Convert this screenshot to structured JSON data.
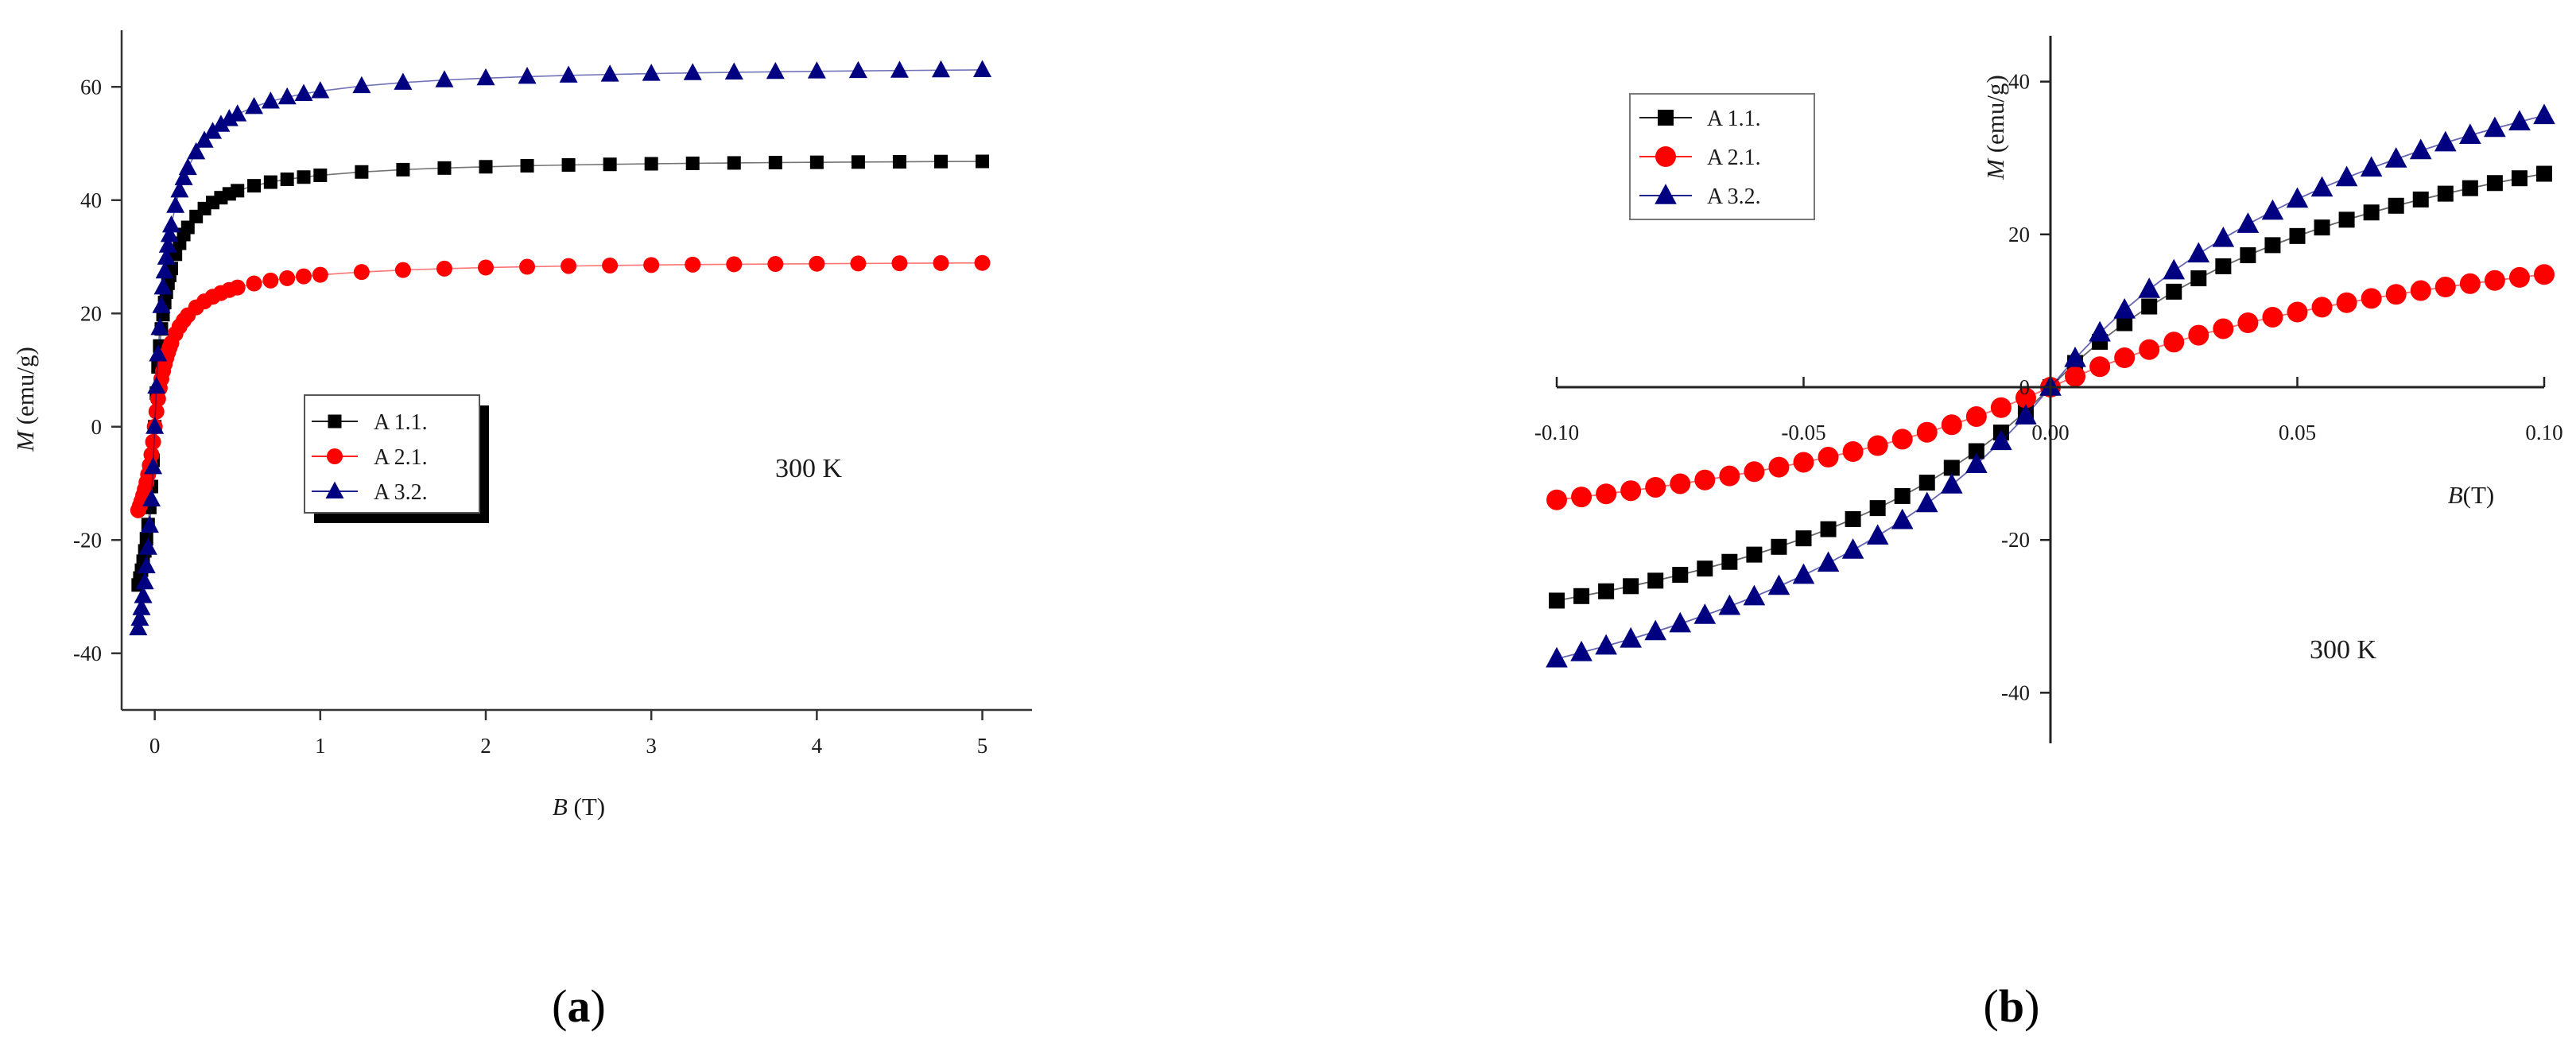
{
  "chart_data": [
    {
      "type": "line",
      "panel_label": "a",
      "xlabel_var": "B",
      "xlabel_unit": " (T)",
      "ylabel_var": "M",
      "ylabel_unit": " (emu/g)",
      "xlim": [
        -0.2,
        5.3
      ],
      "ylim": [
        -50,
        70
      ],
      "xticks": [
        0,
        1,
        2,
        3,
        4,
        5
      ],
      "xtick_labels": [
        "0",
        "1",
        "2",
        "3",
        "4",
        "5"
      ],
      "yticks": [
        -40,
        -20,
        0,
        20,
        40,
        60
      ],
      "ytick_labels": [
        "-40",
        "-20",
        "0",
        "20",
        "40",
        "60"
      ],
      "annotation": "300 K",
      "legend": {
        "placement": "center-left",
        "entries": [
          "A 1.1.",
          "A 2.1.",
          "A 3.2."
        ]
      },
      "series": [
        {
          "name": "A 1.1.",
          "color": "#000000",
          "marker": "square",
          "Ms": 47.5,
          "b": 0.07,
          "knee": 0.008,
          "x": []
        },
        {
          "name": "A 2.1.",
          "color": "#ff0000",
          "marker": "circle",
          "Ms": 29.5,
          "b": 0.1,
          "knee": 0.008,
          "x": []
        },
        {
          "name": "A 3.2.",
          "color": "#000080",
          "marker": "triangle",
          "Ms": 64,
          "b": 0.08,
          "knee": 0.008,
          "x": []
        }
      ]
    },
    {
      "type": "line",
      "panel_label": "b",
      "xlabel_var": "B",
      "xlabel_unit": "(T)",
      "ylabel_var": "M",
      "ylabel_unit": " (emu/g)",
      "xlim": [
        -0.1,
        0.1
      ],
      "ylim": [
        -46,
        46
      ],
      "xticks": [
        -0.1,
        -0.05,
        0,
        0.05,
        0.1
      ],
      "xtick_labels": [
        "-0.10",
        "-0.05",
        "0.00",
        "0.05",
        "0.10"
      ],
      "yticks": [
        -40,
        -20,
        0,
        20,
        40
      ],
      "ytick_labels": [
        "-40",
        "-20",
        "0",
        "20",
        "40"
      ],
      "annotation": "300 K",
      "legend": {
        "placement": "top-left",
        "entries": [
          "A 1.1.",
          "A 2.1.",
          "A 3.2."
        ]
      },
      "series": [
        {
          "name": "A 1.1.",
          "color": "#000000",
          "marker": "square",
          "Ms": 47.5,
          "b": 0.07,
          "knee": 0.008,
          "x": []
        },
        {
          "name": "A 2.1.",
          "color": "#ff0000",
          "marker": "circle",
          "Ms": 29.5,
          "b": 0.1,
          "knee": 0.008,
          "x": []
        },
        {
          "name": "A 3.2.",
          "color": "#000080",
          "marker": "triangle",
          "Ms": 64,
          "b": 0.08,
          "knee": 0.008,
          "x": []
        }
      ]
    }
  ]
}
